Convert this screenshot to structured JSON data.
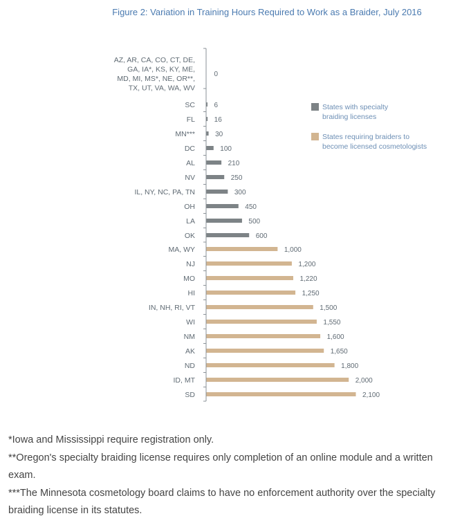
{
  "chart_data": {
    "type": "bar",
    "orientation": "horizontal",
    "title": "Figure 2: Variation in Training Hours Required to Work as a Braider, July 2016",
    "xlim": [
      0,
      2100
    ],
    "legend_position": "top-right",
    "colors": {
      "specialty": "#7d8386",
      "cosmetology": "#d2b591"
    },
    "legend": [
      {
        "key": "specialty",
        "lines": [
          "States with specialty",
          "braiding licenses"
        ]
      },
      {
        "key": "cosmetology",
        "lines": [
          "States requiring braiders to",
          "become licensed cosmetologists"
        ]
      }
    ],
    "bars": [
      {
        "label_lines": [
          "AZ, AR, CA, CO, CT, DE,",
          "GA, IA*, KS, KY, ME,",
          "MD, MI, MS*, NE, OR**,",
          "TX, UT, VA, WA, WV"
        ],
        "value": 0,
        "value_label": "0",
        "group": "specialty"
      },
      {
        "label_lines": [
          "SC"
        ],
        "value": 6,
        "value_label": "6",
        "group": "specialty"
      },
      {
        "label_lines": [
          "FL"
        ],
        "value": 16,
        "value_label": "16",
        "group": "specialty"
      },
      {
        "label_lines": [
          "MN***"
        ],
        "value": 30,
        "value_label": "30",
        "group": "specialty"
      },
      {
        "label_lines": [
          "DC"
        ],
        "value": 100,
        "value_label": "100",
        "group": "specialty"
      },
      {
        "label_lines": [
          "AL"
        ],
        "value": 210,
        "value_label": "210",
        "group": "specialty"
      },
      {
        "label_lines": [
          "NV"
        ],
        "value": 250,
        "value_label": "250",
        "group": "specialty"
      },
      {
        "label_lines": [
          "IL, NY, NC, PA, TN"
        ],
        "value": 300,
        "value_label": "300",
        "group": "specialty"
      },
      {
        "label_lines": [
          "OH"
        ],
        "value": 450,
        "value_label": "450",
        "group": "specialty"
      },
      {
        "label_lines": [
          "LA"
        ],
        "value": 500,
        "value_label": "500",
        "group": "specialty"
      },
      {
        "label_lines": [
          "OK"
        ],
        "value": 600,
        "value_label": "600",
        "group": "specialty"
      },
      {
        "label_lines": [
          "MA, WY"
        ],
        "value": 1000,
        "value_label": "1,000",
        "group": "cosmetology"
      },
      {
        "label_lines": [
          "NJ"
        ],
        "value": 1200,
        "value_label": "1,200",
        "group": "cosmetology"
      },
      {
        "label_lines": [
          "MO"
        ],
        "value": 1220,
        "value_label": "1,220",
        "group": "cosmetology"
      },
      {
        "label_lines": [
          "HI"
        ],
        "value": 1250,
        "value_label": "1,250",
        "group": "cosmetology"
      },
      {
        "label_lines": [
          "IN, NH, RI, VT"
        ],
        "value": 1500,
        "value_label": "1,500",
        "group": "cosmetology"
      },
      {
        "label_lines": [
          "WI"
        ],
        "value": 1550,
        "value_label": "1,550",
        "group": "cosmetology"
      },
      {
        "label_lines": [
          "NM"
        ],
        "value": 1600,
        "value_label": "1,600",
        "group": "cosmetology"
      },
      {
        "label_lines": [
          "AK"
        ],
        "value": 1650,
        "value_label": "1,650",
        "group": "cosmetology"
      },
      {
        "label_lines": [
          "ND"
        ],
        "value": 1800,
        "value_label": "1,800",
        "group": "cosmetology"
      },
      {
        "label_lines": [
          "ID, MT"
        ],
        "value": 2000,
        "value_label": "2,000",
        "group": "cosmetology"
      },
      {
        "label_lines": [
          "SD"
        ],
        "value": 2100,
        "value_label": "2,100",
        "group": "cosmetology"
      }
    ]
  },
  "notes": [
    "*Iowa and Mississippi require registration only.",
    "**Oregon's specialty braiding license requires only completion of an online module and a written exam.",
    "***The Minnesota cosmetology board claims to have no enforcement authority over the specialty braiding license in its statutes."
  ]
}
